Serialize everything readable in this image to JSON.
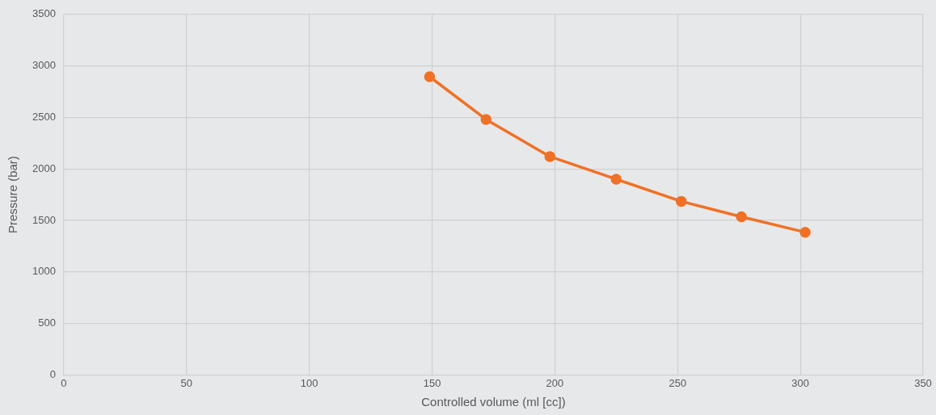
{
  "chart_data": {
    "type": "line",
    "xlabel": "Controlled volume (ml [cc])",
    "ylabel": "Pressure (bar)",
    "x": [
      149,
      172,
      198,
      225,
      251.5,
      276,
      302
    ],
    "series": [
      {
        "color": "#f07125",
        "values": [
          2895,
          2480,
          2120,
          1900,
          1685,
          1535,
          1385
        ]
      }
    ],
    "xlim": [
      0,
      350
    ],
    "xticks": [
      0,
      50,
      100,
      150,
      200,
      250,
      300,
      350
    ],
    "ylim": [
      0,
      3500
    ],
    "yticks": [
      0,
      500,
      1000,
      1500,
      2000,
      2500,
      3000,
      3500
    ],
    "grid": true,
    "legend": false,
    "marker": "circle",
    "line_style": "solid"
  }
}
